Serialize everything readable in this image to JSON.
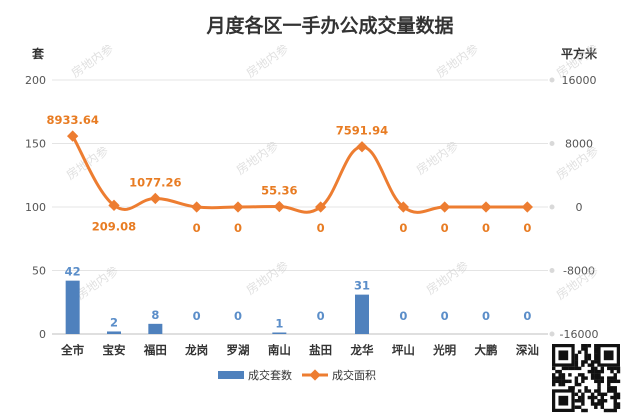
{
  "chart_data": {
    "type": "bar",
    "title": "月度各区一手办公成交量数据",
    "left_axis_unit": "套",
    "right_axis_unit": "平方米",
    "categories": [
      "全市",
      "宝安",
      "福田",
      "龙岗",
      "罗湖",
      "南山",
      "盐田",
      "龙华",
      "坪山",
      "光明",
      "大鹏",
      "深汕"
    ],
    "series": [
      {
        "name": "成交套数",
        "type": "bar",
        "axis": "left",
        "color": "#4f81bd",
        "values": [
          42,
          2,
          8,
          0,
          0,
          1,
          0,
          31,
          0,
          0,
          0,
          0
        ],
        "labels": [
          "42",
          "2",
          "8",
          "0",
          "0",
          "1",
          "0",
          "31",
          "0",
          "0",
          "0",
          "0"
        ]
      },
      {
        "name": "成交面积",
        "type": "line",
        "axis": "right",
        "color": "#ed7d31",
        "values": [
          8933.64,
          209.08,
          1077.26,
          0,
          0,
          55.36,
          0,
          7591.94,
          0,
          0,
          0,
          0
        ],
        "labels": [
          "8933.64",
          "209.08",
          "1077.26",
          "0",
          "0",
          "55.36",
          "0",
          "7591.94",
          "0",
          "0",
          "0",
          "0"
        ]
      }
    ],
    "left_axis": {
      "min": 0,
      "max": 200,
      "ticks": [
        "0",
        "50",
        "100",
        "150",
        "200"
      ]
    },
    "right_axis": {
      "min": -16000,
      "max": 16000,
      "ticks": [
        "-16000",
        "-8000",
        "0",
        "8000",
        "16000"
      ]
    },
    "grid": true,
    "legend_position": "bottom"
  },
  "watermark": "房地内参"
}
